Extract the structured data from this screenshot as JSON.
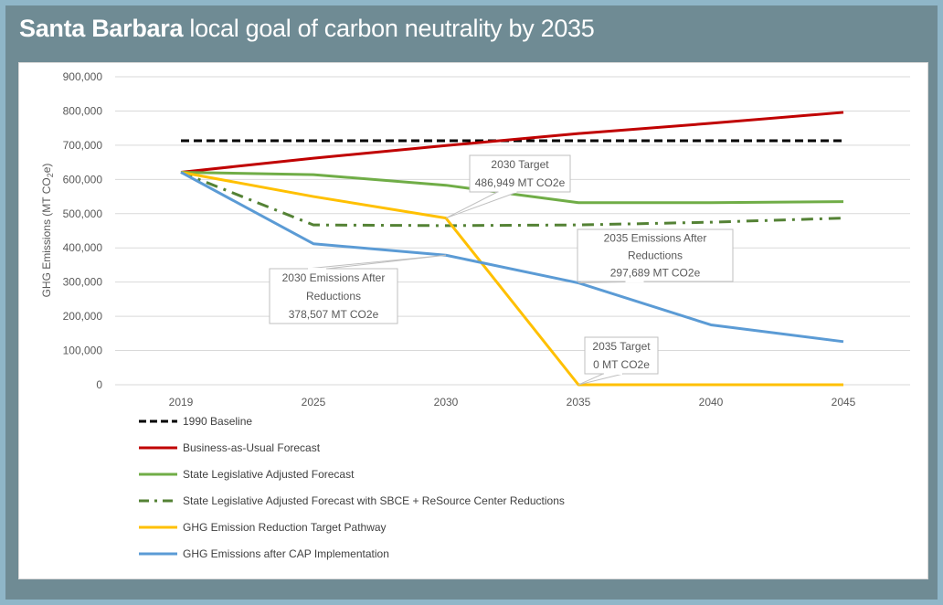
{
  "title": {
    "bold": "Santa Barbara",
    "rest": " local goal of carbon neutrality by 2035"
  },
  "chart_data": {
    "type": "line",
    "title": "Santa Barbara local goal of carbon neutrality by 2035",
    "ylabel": "GHG Emissions (MT CO2e)",
    "ylabel_parts": {
      "main": "GHG Emissions (MT CO",
      "sub": "2",
      "end": "e)"
    },
    "categories": [
      "2019",
      "2025",
      "2030",
      "2035",
      "2040",
      "2045"
    ],
    "ylim": [
      0,
      900000
    ],
    "yticks": [
      0,
      100000,
      200000,
      300000,
      400000,
      500000,
      600000,
      700000,
      800000,
      900000
    ],
    "ytick_labels": [
      "0",
      "100,000",
      "200,000",
      "300,000",
      "400,000",
      "500,000",
      "600,000",
      "700,000",
      "800,000",
      "900,000"
    ],
    "grid": true,
    "legend_position": "bottom-left",
    "series": [
      {
        "name": "1990 Baseline",
        "color": "#000000",
        "style": "dashed",
        "values": [
          713000,
          713000,
          713000,
          713000,
          713000,
          713000
        ]
      },
      {
        "name": "Business-as-Usual Forecast",
        "color": "#c00000",
        "style": "solid",
        "values": [
          621000,
          662000,
          699000,
          734000,
          764000,
          796000
        ]
      },
      {
        "name": "State Legislative Adjusted Forecast",
        "color": "#70ad47",
        "style": "solid",
        "values": [
          621000,
          614000,
          583000,
          532000,
          532000,
          535000
        ]
      },
      {
        "name": "State Legislative Adjusted Forecast with SBCE + ReSource Center Reductions",
        "color": "#548235",
        "style": "dashdot",
        "values": [
          621000,
          467000,
          465000,
          467000,
          475000,
          487000
        ]
      },
      {
        "name": "GHG Emission Reduction Target Pathway",
        "color": "#ffc000",
        "style": "solid",
        "values": [
          621000,
          550000,
          486949,
          0,
          0,
          0
        ]
      },
      {
        "name": "GHG Emissions after CAP Implementation",
        "color": "#5b9bd5",
        "style": "solid",
        "values": [
          621000,
          412000,
          378507,
          297689,
          175000,
          126000
        ]
      }
    ],
    "annotations": [
      {
        "lines": [
          "2030 Target",
          "486,949 MT CO2e"
        ],
        "category": "2030",
        "value": 486949
      },
      {
        "lines": [
          "2030 Emissions After",
          "Reductions",
          "378,507 MT CO2e"
        ],
        "category": "2030",
        "value": 378507
      },
      {
        "lines": [
          "2035 Emissions After",
          "Reductions",
          "297,689 MT CO2e"
        ],
        "category": "2035",
        "value": 297689
      },
      {
        "lines": [
          "2035 Target",
          "0 MT CO2e"
        ],
        "category": "2035",
        "value": 0
      }
    ]
  }
}
